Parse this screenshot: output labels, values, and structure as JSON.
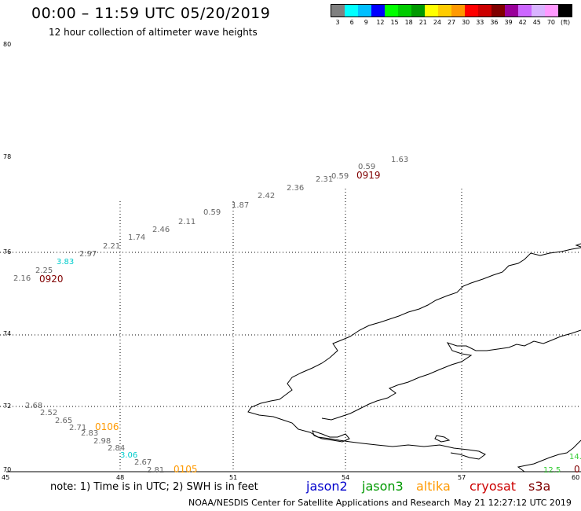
{
  "header": {
    "title": "00:00 – 11:59 UTC 05/20/2019",
    "subtitle": "12 hour collection of altimeter wave heights"
  },
  "scale": {
    "colors": [
      "#808080",
      "#00ffff",
      "#00bfff",
      "#0000ff",
      "#00ff00",
      "#00cc00",
      "#009900",
      "#ffff00",
      "#ffcc00",
      "#ff9900",
      "#ff0000",
      "#cc0000",
      "#800000",
      "#990099",
      "#cc66ff",
      "#d9b3ff",
      "#ff99ff",
      "#000000"
    ],
    "labels": [
      "3",
      "6",
      "9",
      "12",
      "15",
      "18",
      "21",
      "24",
      "27",
      "30",
      "33",
      "36",
      "39",
      "42",
      "45",
      "70",
      "(ft)"
    ]
  },
  "map": {
    "lat_labels": [
      "80",
      "78",
      "76",
      "74",
      "72",
      "70"
    ],
    "lon_labels": [
      "45",
      "48",
      "51",
      "54",
      "57",
      "60"
    ],
    "track1": {
      "values": [
        "2.16",
        "2.25",
        "3.83",
        "2.97",
        "2.21",
        "1.74",
        "2.46",
        "2.11",
        "0.59",
        "1.87",
        "2.42",
        "2.36",
        "2.31",
        "0.59",
        "0.59",
        "1.63"
      ],
      "times": [
        "0920",
        "0919"
      ]
    },
    "track2": {
      "values": [
        "2.68",
        "2.52",
        "2.65",
        "2.71",
        "2.83",
        "2.98",
        "2.84",
        "3.06",
        "2.67",
        "2.81"
      ],
      "times": [
        "0106",
        "0105"
      ]
    },
    "track3": {
      "values": [
        "14.",
        "12.5"
      ],
      "time": "0"
    }
  },
  "footer": {
    "note": "note: 1) Time is in UTC; 2) SWH is in feet",
    "legend": [
      {
        "label": "jason2",
        "color": "#0000cc"
      },
      {
        "label": "jason3",
        "color": "#009900"
      },
      {
        "label": "altika",
        "color": "#ff9900"
      },
      {
        "label": "cryosat",
        "color": "#cc0000"
      },
      {
        "label": "s3a",
        "color": "#800000"
      }
    ],
    "credit": "NOAA/NESDIS Center for Satellite Applications and Research",
    "stamp": "May 21 12:27:12 UTC 2019"
  }
}
